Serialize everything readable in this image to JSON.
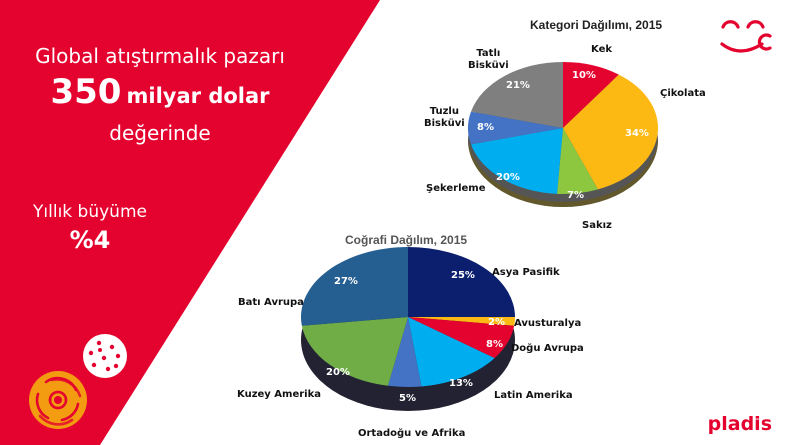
{
  "headline": {
    "line1": "Global atıştırmalık pazarı",
    "value": "350",
    "unit": "milyar dolar",
    "line3": "değerinde"
  },
  "growth": {
    "label": "Yıllık büyüme",
    "value": "%4"
  },
  "brand": {
    "name": "pladis",
    "color": "#e4032e"
  },
  "colors": {
    "background_red": "#e4032e",
    "cookie_orange": "#f39c12"
  },
  "chart_data": [
    {
      "type": "pie",
      "title": "Kategori Dağılımı, 2015",
      "categories": [
        "Kek",
        "Çikolata",
        "Sakız",
        "Şekerleme",
        "Tuzlu Bisküvi",
        "Tatlı Bisküvi"
      ],
      "values": [
        10,
        34,
        7,
        20,
        8,
        21
      ],
      "unit": "%",
      "colors": [
        "#e4032e",
        "#fdb913",
        "#8dc63f",
        "#00aeef",
        "#4472c4",
        "#7f7f7f"
      ],
      "style": "3d"
    },
    {
      "type": "pie",
      "title": "Coğrafi Dağılım, 2015",
      "categories": [
        "Asya Pasifik",
        "Avusturalya",
        "Doğu Avrupa",
        "Latin Amerika",
        "Ortadoğu ve Afrika",
        "Kuzey Amerika",
        "Batı Avrupa"
      ],
      "values": [
        25,
        2,
        8,
        13,
        5,
        20,
        27
      ],
      "unit": "%",
      "colors": [
        "#0b1f6e",
        "#fdb913",
        "#e4032e",
        "#00aeef",
        "#4472c4",
        "#70ad47",
        "#255e91"
      ],
      "style": "3d"
    }
  ],
  "labels": {
    "cat": {
      "kek": "Kek",
      "cikolata": "Çikolata",
      "sakiz": "Sakız",
      "sekerleme": "Şekerleme",
      "tuzlu1": "Tuzlu",
      "tuzlu2": "Bisküvi",
      "tatli1": "Tatlı",
      "tatli2": "Bisküvi",
      "p_kek": "10%",
      "p_cikolata": "34%",
      "p_sakiz": "7%",
      "p_sekerleme": "20%",
      "p_tuzlu": "8%",
      "p_tatli": "21%"
    },
    "geo": {
      "asya": "Asya Pasifik",
      "avust": "Avusturalya",
      "dogu": "Doğu Avrupa",
      "latin": "Latin Amerika",
      "orta": "Ortadoğu ve Afrika",
      "kuzey": "Kuzey Amerika",
      "bati": "Batı Avrupa",
      "p_asya": "25%",
      "p_avust": "2%",
      "p_dogu": "8%",
      "p_latin": "13%",
      "p_orta": "5%",
      "p_kuzey": "20%",
      "p_bati": "27%"
    }
  }
}
